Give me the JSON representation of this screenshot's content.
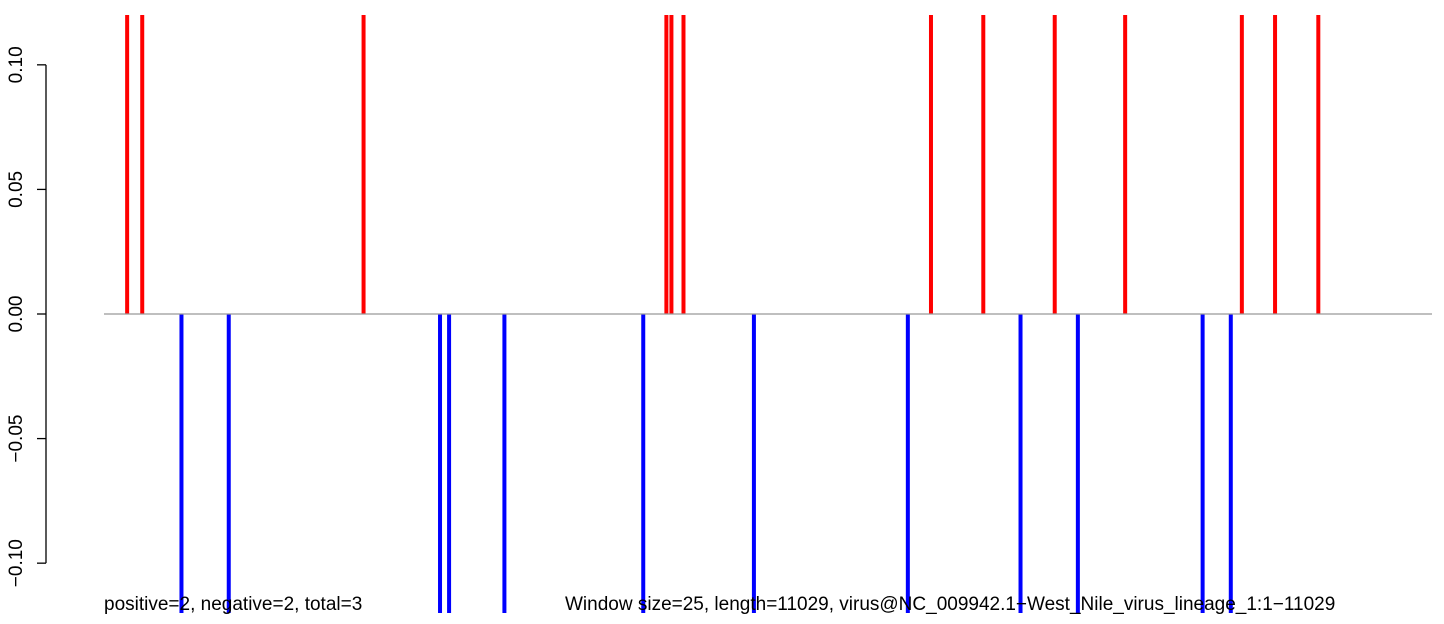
{
  "chart_data": {
    "type": "bar",
    "ylim": [
      -0.12,
      0.12
    ],
    "yticks": [
      -0.1,
      -0.05,
      0.0,
      0.05,
      0.1
    ],
    "ytick_labels": [
      "−0.10",
      "−0.05",
      "0.00",
      "0.05",
      "0.10"
    ],
    "xlim": [
      0,
      132
    ],
    "positive_color": "#ff0000",
    "negative_color": "#0000ff",
    "zero_line_color": "#999999",
    "bars": [
      {
        "x": 2.3,
        "value": 0.12
      },
      {
        "x": 3.8,
        "value": 0.12
      },
      {
        "x": 7.7,
        "value": -0.12
      },
      {
        "x": 12.4,
        "value": -0.12
      },
      {
        "x": 25.8,
        "value": 0.12
      },
      {
        "x": 33.4,
        "value": -0.12
      },
      {
        "x": 34.3,
        "value": -0.12
      },
      {
        "x": 39.8,
        "value": -0.12
      },
      {
        "x": 53.6,
        "value": -0.12
      },
      {
        "x": 55.9,
        "value": 0.12
      },
      {
        "x": 56.4,
        "value": 0.12
      },
      {
        "x": 57.6,
        "value": 0.12
      },
      {
        "x": 64.6,
        "value": -0.12
      },
      {
        "x": 79.9,
        "value": -0.12
      },
      {
        "x": 82.2,
        "value": 0.12
      },
      {
        "x": 87.4,
        "value": 0.12
      },
      {
        "x": 91.1,
        "value": -0.12
      },
      {
        "x": 94.5,
        "value": 0.12
      },
      {
        "x": 96.8,
        "value": -0.12
      },
      {
        "x": 101.5,
        "value": 0.12
      },
      {
        "x": 109.2,
        "value": -0.12
      },
      {
        "x": 112.0,
        "value": -0.12
      },
      {
        "x": 113.1,
        "value": 0.12
      },
      {
        "x": 116.4,
        "value": 0.12
      },
      {
        "x": 120.7,
        "value": 0.12
      }
    ]
  },
  "footer": {
    "counts_text": "positive=2, negative=2, total=3",
    "info_text": "Window size=25, length=11029, virus@NC_009942.1−West_Nile_virus_lineage_1:1−11029"
  }
}
